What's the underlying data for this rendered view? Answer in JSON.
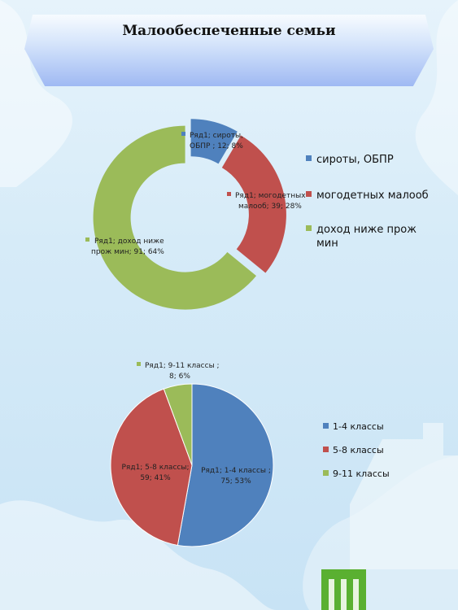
{
  "page": {
    "title": "Малообеспеченные семьи"
  },
  "colors": {
    "blue": "#4f81bd",
    "red": "#c0504d",
    "green": "#9bbb59"
  },
  "chart_data": [
    {
      "type": "pie",
      "variant": "doughnut",
      "series_name": "Ряд1",
      "categories": [
        "сироты, ОБПР",
        "могодетных малооб",
        "доход ниже прож мин"
      ],
      "values": [
        12,
        39,
        91
      ],
      "percents": [
        8,
        28,
        64
      ],
      "data_labels": [
        [
          "Ряд1; сироты,",
          "ОБПР ; 12; 8%"
        ],
        [
          "Ряд1; могодетных",
          "малооб; 39; 28%"
        ],
        [
          "Ряд1; доход ниже",
          "прож мин; 91; 64%"
        ]
      ],
      "legend": [
        "сироты, ОБПР",
        "могодетных малооб",
        "доход ниже прож",
        "мин"
      ],
      "legend_position": "right"
    },
    {
      "type": "pie",
      "series_name": "Ряд1",
      "categories": [
        "1-4 классы",
        "5-8 классы",
        "9-11 классы"
      ],
      "values": [
        75,
        59,
        8
      ],
      "percents": [
        53,
        41,
        6
      ],
      "data_labels": [
        [
          "Ряд1; 1-4 классы ;",
          "75; 53%"
        ],
        [
          "Ряд1; 5-8 классы;",
          "59; 41%"
        ],
        [
          "Ряд1; 9-11 классы ;",
          "8; 6%"
        ]
      ],
      "legend": [
        "1-4 классы",
        "5-8 классы",
        "9-11 классы"
      ],
      "legend_position": "right"
    }
  ]
}
